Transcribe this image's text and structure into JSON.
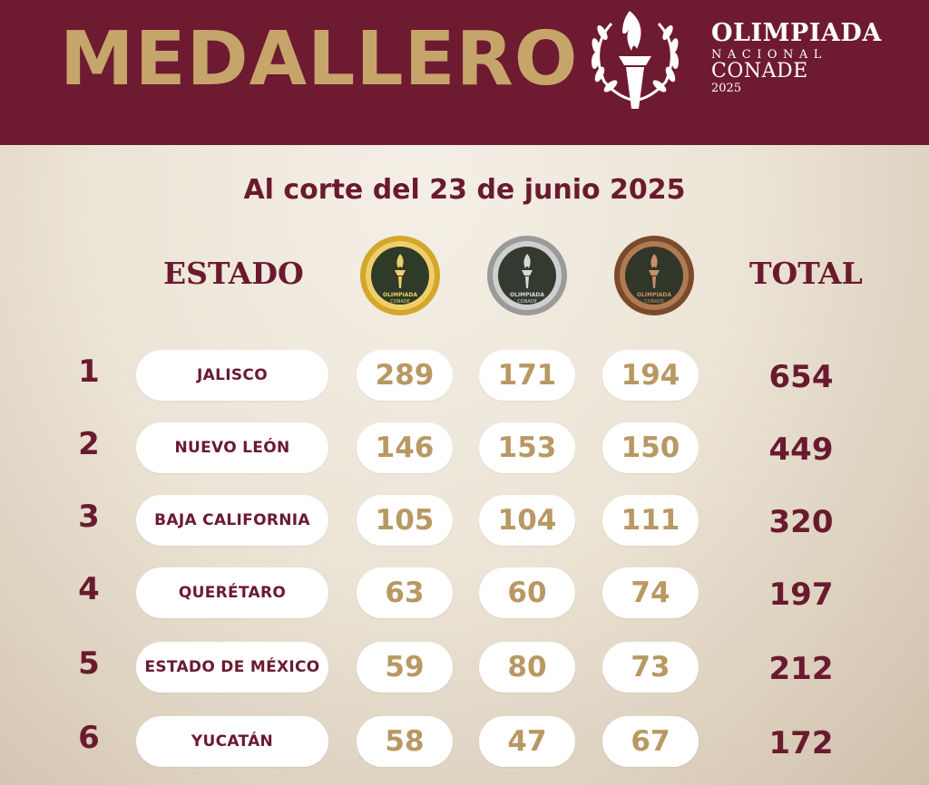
{
  "header": {
    "title": "MEDALLERO",
    "brand_line1": "OLIMPIADA",
    "brand_line2": "NACIONAL",
    "brand_line3": "CONADE",
    "brand_year": "2025"
  },
  "subtitle": "Al corte del 23 de junio 2025",
  "columns": {
    "state": "ESTADO",
    "total": "TOTAL",
    "medal_text_1": "OLIMPIADA",
    "medal_text_2": "NACIONAL",
    "medal_text_3": "CONADE"
  },
  "colors": {
    "header_bg": "#6e1a31",
    "title_gold": "#c6a56a",
    "maroon_text": "#6a1a2f",
    "number_gold": "#b89863",
    "gold_medal": "#d4a62a",
    "silver_medal": "#a9a9a9",
    "bronze_medal": "#8a5a3a"
  },
  "rows": [
    {
      "rank": "1",
      "state": "JALISCO",
      "gold": "289",
      "silver": "171",
      "bronze": "194",
      "total": "654"
    },
    {
      "rank": "2",
      "state": "NUEVO LEÓN",
      "gold": "146",
      "silver": "153",
      "bronze": "150",
      "total": "449"
    },
    {
      "rank": "3",
      "state": "BAJA CALIFORNIA",
      "gold": "105",
      "silver": "104",
      "bronze": "111",
      "total": "320"
    },
    {
      "rank": "4",
      "state": "QUERÉTARO",
      "gold": "63",
      "silver": "60",
      "bronze": "74",
      "total": "197"
    },
    {
      "rank": "5",
      "state": "ESTADO DE MÉXICO",
      "gold": "59",
      "silver": "80",
      "bronze": "73",
      "total": "212"
    },
    {
      "rank": "6",
      "state": "YUCATÁN",
      "gold": "58",
      "silver": "47",
      "bronze": "67",
      "total": "172"
    }
  ]
}
